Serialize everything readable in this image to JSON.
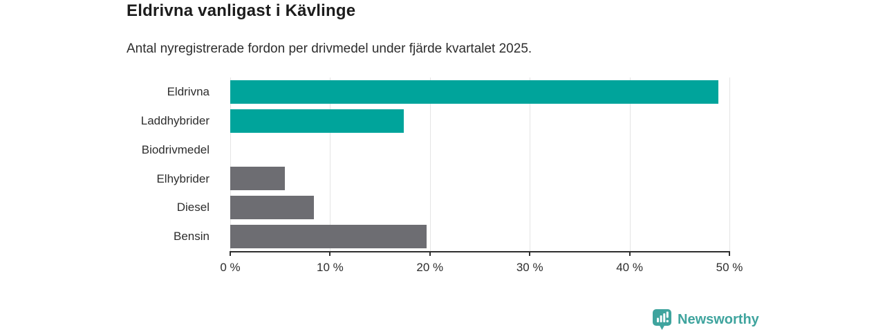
{
  "chart_data": {
    "type": "bar",
    "orientation": "horizontal",
    "title": "Eldrivna vanligast i Kävlinge",
    "subtitle": "Antal nyregistrerade fordon per drivmedel under fjärde kvartalet 2025.",
    "categories": [
      "Eldrivna",
      "Laddhybrider",
      "Biodrivmedel",
      "Elhybrider",
      "Diesel",
      "Bensin"
    ],
    "values": [
      48.9,
      17.4,
      0,
      5.5,
      8.4,
      19.7
    ],
    "unit": "%",
    "xlabel": "",
    "ylabel": "",
    "xlim": [
      0,
      50
    ],
    "xticks": [
      0,
      10,
      20,
      30,
      40,
      50
    ],
    "xtick_labels": [
      "0 %",
      "10 %",
      "20 %",
      "30 %",
      "40 %",
      "50 %"
    ],
    "bar_colors": [
      "#00a49b",
      "#00a49b",
      "#00a49b",
      "#6d6d72",
      "#6d6d72",
      "#6d6d72"
    ],
    "grid": true,
    "legend": false
  },
  "branding": {
    "wordmark": "Newsworthy",
    "icon": "newsworthy-bar-chart-pin-icon",
    "color": "#3fa49e"
  },
  "colors": {
    "accent_teal": "#00a49b",
    "bar_gray": "#6d6d72",
    "grid": "#e4e4e4",
    "axis": "#2e2e2e",
    "title_text": "#1c1c1c",
    "body_text": "#2d2d2d"
  }
}
